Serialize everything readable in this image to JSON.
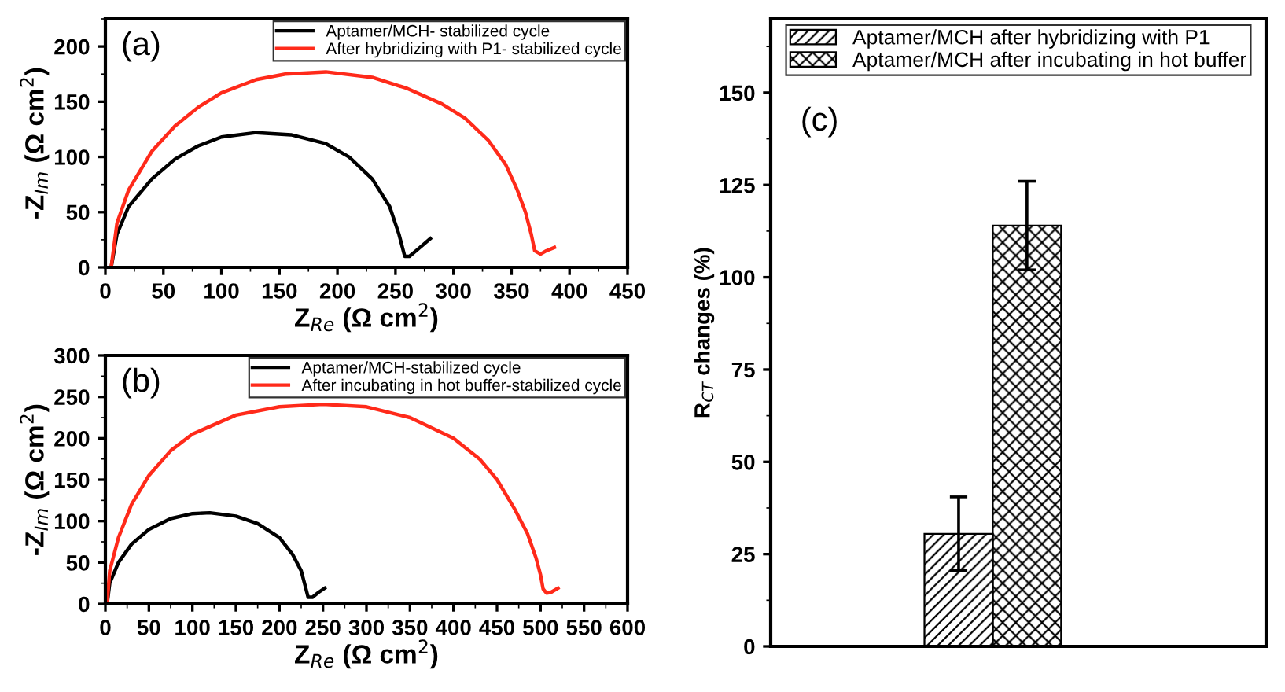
{
  "chart_data": [
    {
      "type": "line",
      "title": "(a)",
      "xlabel": "Z$_{Re}$ (Ω cm$^{2}$)",
      "ylabel": "-Z$_{Im}$ (Ω cm$^{2}$)",
      "xlim": [
        0,
        450
      ],
      "ylim": [
        0,
        225
      ],
      "xticks": [
        0,
        50,
        100,
        150,
        200,
        250,
        300,
        350,
        400,
        450
      ],
      "yticks": [
        0,
        50,
        100,
        150,
        200
      ],
      "grid": false,
      "legend": "top right",
      "marker": "none",
      "line_style": "solid",
      "series": [
        {
          "name": "Aptamer/MCH- stabilized cycle",
          "color": "#000000",
          "x": [
            5,
            10,
            20,
            40,
            60,
            80,
            100,
            130,
            160,
            190,
            210,
            230,
            245,
            253,
            258,
            262,
            270,
            280
          ],
          "values": [
            0,
            30,
            55,
            80,
            98,
            110,
            118,
            122,
            120,
            112,
            100,
            80,
            55,
            30,
            10,
            10,
            17,
            26
          ]
        },
        {
          "name": "After hybridizing with P1- stabilized cycle",
          "color": "#ff2a1a",
          "x": [
            5,
            10,
            20,
            40,
            60,
            80,
            100,
            130,
            155,
            190,
            230,
            260,
            290,
            310,
            330,
            345,
            355,
            362,
            367,
            370,
            375,
            380,
            387
          ],
          "values": [
            0,
            40,
            70,
            105,
            128,
            145,
            158,
            170,
            175,
            177,
            172,
            162,
            148,
            135,
            115,
            93,
            70,
            50,
            30,
            15,
            12,
            15,
            18
          ]
        }
      ]
    },
    {
      "type": "line",
      "title": "(b)",
      "xlabel": "Z$_{Re}$ (Ω cm$^{2}$)",
      "ylabel": "-Z$_{Im}$ (Ω cm$^{2}$)",
      "xlim": [
        0,
        600
      ],
      "ylim": [
        0,
        300
      ],
      "xticks": [
        0,
        50,
        100,
        150,
        200,
        250,
        300,
        350,
        400,
        450,
        500,
        550,
        600
      ],
      "yticks": [
        0,
        50,
        100,
        150,
        200,
        250,
        300
      ],
      "grid": false,
      "legend": "top right",
      "marker": "none",
      "line_style": "solid",
      "series": [
        {
          "name": "Aptamer/MCH-stabilized cycle",
          "color": "#000000",
          "x": [
            2,
            5,
            15,
            30,
            50,
            75,
            100,
            120,
            150,
            175,
            200,
            215,
            225,
            230,
            233,
            238,
            245,
            252
          ],
          "values": [
            0,
            25,
            50,
            72,
            90,
            103,
            109,
            110,
            106,
            97,
            80,
            60,
            40,
            20,
            8,
            8,
            14,
            19
          ]
        },
        {
          "name": "After incubating in hot buffer-stabilized cycle",
          "color": "#ff2a1a",
          "x": [
            2,
            5,
            15,
            30,
            50,
            75,
            100,
            150,
            200,
            250,
            300,
            350,
            400,
            430,
            450,
            470,
            485,
            495,
            500,
            503,
            507,
            512,
            520
          ],
          "values": [
            0,
            40,
            80,
            120,
            155,
            185,
            205,
            228,
            238,
            241,
            238,
            225,
            200,
            175,
            150,
            115,
            85,
            55,
            35,
            18,
            13,
            14,
            19
          ]
        }
      ]
    },
    {
      "type": "bar",
      "title": "(c)",
      "ylabel": "R$_{CT}$ changes (%)",
      "categories": [
        null
      ],
      "ylim": [
        0,
        170
      ],
      "yticks": [
        0,
        25,
        50,
        75,
        100,
        125,
        150
      ],
      "grid": false,
      "legend": "top",
      "series": [
        {
          "name": "Aptamer/MCH after hybridizing with P1",
          "color": "#000000",
          "values": [
            30.5
          ],
          "errors": [
            10
          ]
        },
        {
          "name": "Aptamer/MCH after incubating in hot buffer",
          "color": "#000000",
          "values": [
            114
          ],
          "errors": [
            12
          ]
        }
      ]
    }
  ]
}
